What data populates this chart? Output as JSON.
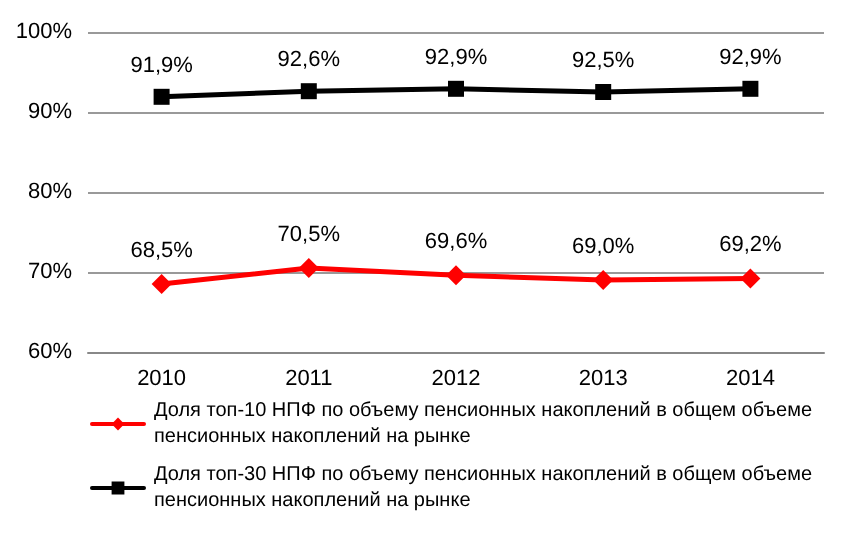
{
  "chart_data": {
    "type": "line",
    "categories": [
      "2010",
      "2011",
      "2012",
      "2013",
      "2014"
    ],
    "series": [
      {
        "name": "Доля топ-10 НПФ по объему пенсионных накоплений в общем объеме пенсионных накоплений на рынке",
        "color": "#ff0000",
        "marker": "diamond",
        "values": [
          68.5,
          70.5,
          69.6,
          69.0,
          69.2
        ],
        "value_labels": [
          "68,5%",
          "70,5%",
          "69,6%",
          "69,0%",
          "69,2%"
        ]
      },
      {
        "name": "Доля топ-30 НПФ по объему пенсионных накоплений в общем объеме пенсионных накоплений на рынке",
        "color": "#000000",
        "marker": "square",
        "values": [
          91.9,
          92.6,
          92.9,
          92.5,
          92.9
        ],
        "value_labels": [
          "91,9%",
          "92,6%",
          "92,9%",
          "92,5%",
          "92,9%"
        ]
      }
    ],
    "ylim": [
      60,
      100
    ],
    "yticks": [
      {
        "value": 60,
        "label": "60%"
      },
      {
        "value": 70,
        "label": "70%"
      },
      {
        "value": 80,
        "label": "80%"
      },
      {
        "value": 90,
        "label": "90%"
      },
      {
        "value": 100,
        "label": "100%"
      }
    ],
    "grid": "y",
    "legend": "bottom"
  }
}
